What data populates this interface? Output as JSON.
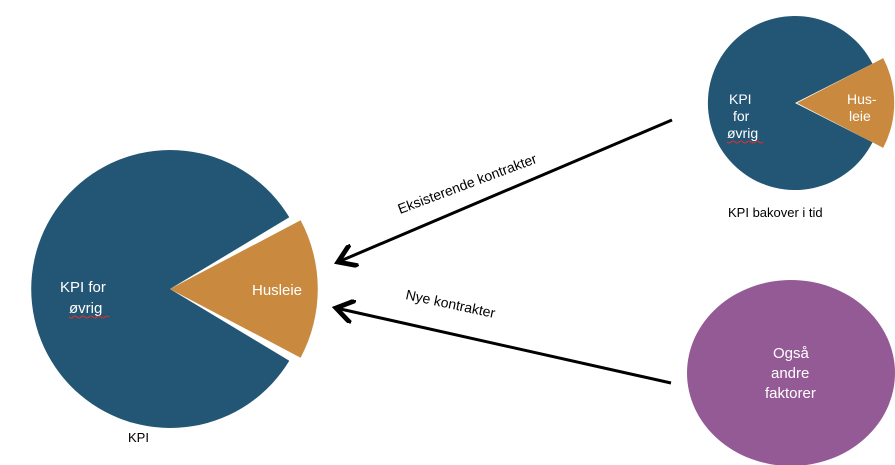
{
  "colors": {
    "background": "#ffffff",
    "kpi_blue": "#235674",
    "husleie_orange": "#c98a3f",
    "other_purple": "#945a96",
    "arrow": "#000000",
    "label_text": "#ffffff",
    "caption_text": "#000000",
    "spellcheck_underline": "#e0302a"
  },
  "main_pie": {
    "body_line1": "KPI for",
    "body_line2": "øvrig",
    "slice_label": "Husleie",
    "caption": "KPI"
  },
  "small_pie": {
    "body_line1": "KPI",
    "body_line2": "for",
    "body_line3": "øvrig",
    "slice_line1": "Hus-",
    "slice_line2": "leie",
    "caption": "KPI bakover i tid"
  },
  "factors_circle": {
    "line1": "Også",
    "line2": "andre",
    "line3": "faktorer"
  },
  "arrows": {
    "existing_label": "Eksisterende kontrakter",
    "new_label": "Nye kontrakter"
  }
}
